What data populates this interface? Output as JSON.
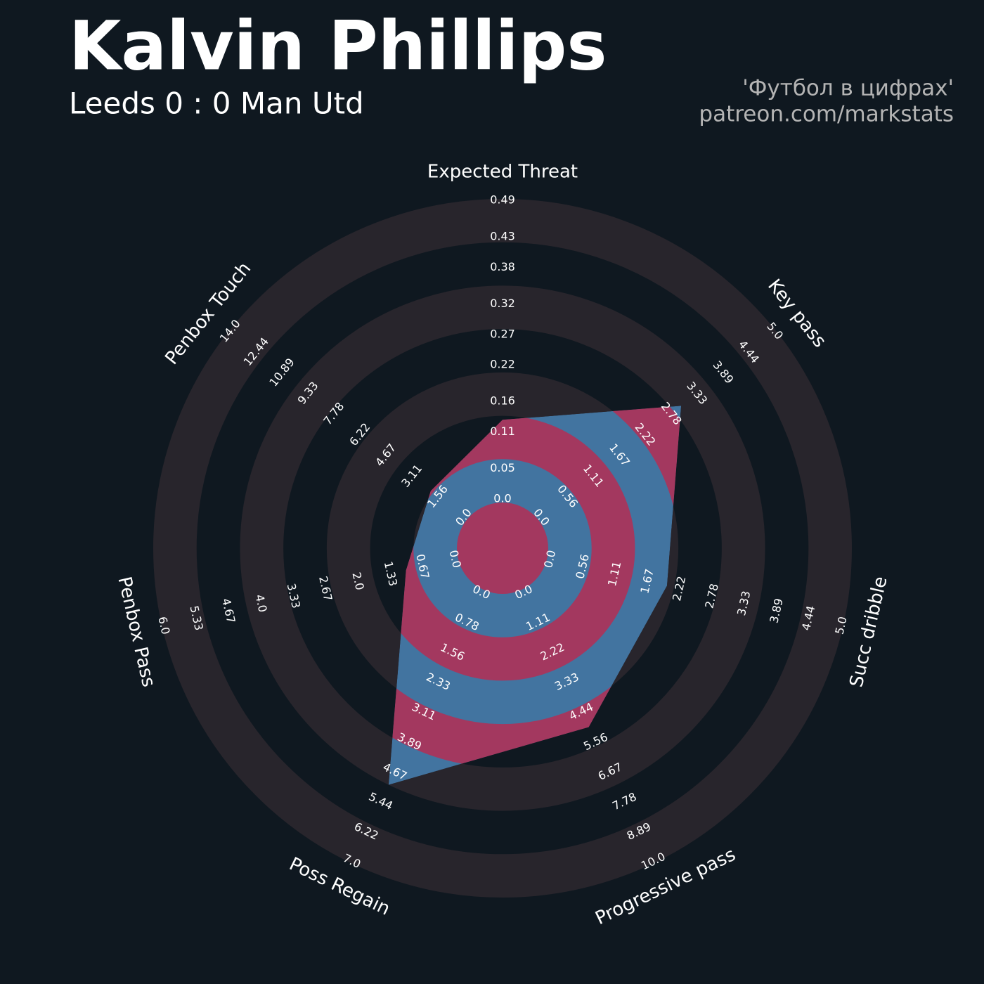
{
  "chart_data": {
    "type": "radar",
    "title": "Kalvin Phillips",
    "subtitle": "Leeds 0 : 0 Man Utd",
    "annotations": [
      "'Футбол в цифрах'",
      "patreon.com/markstats"
    ],
    "categories": [
      "Expected Threat",
      "Key pass",
      "Succ dribble",
      "Progressive pass",
      "Poss Regain",
      "Penbox Pass",
      "Penbox Touch"
    ],
    "axes": [
      {
        "ylim": [
          0,
          0.49
        ],
        "yticks": [
          {
            "value": 0,
            "label": "0.0"
          },
          0.05,
          0.11,
          0.16,
          0.22,
          0.27,
          0.32,
          0.38,
          0.43,
          0.49
        ]
      },
      {
        "ylim": [
          0,
          5
        ],
        "yticks": [
          {
            "value": 0,
            "label": "0.0"
          },
          0.56,
          1.11,
          1.67,
          2.22,
          2.78,
          3.33,
          3.89,
          4.44,
          {
            "value": 5,
            "label": "5.0"
          }
        ]
      },
      {
        "ylim": [
          0,
          5
        ],
        "yticks": [
          {
            "value": 0,
            "label": "0.0"
          },
          0.56,
          1.11,
          1.67,
          2.22,
          2.78,
          3.33,
          3.89,
          4.44,
          {
            "value": 5,
            "label": "5.0"
          }
        ]
      },
      {
        "ylim": [
          0,
          10
        ],
        "yticks": [
          {
            "value": 0,
            "label": "0.0"
          },
          1.11,
          2.22,
          3.33,
          4.44,
          5.56,
          6.67,
          7.78,
          8.89,
          {
            "value": 10,
            "label": "10.0"
          }
        ]
      },
      {
        "ylim": [
          0,
          7
        ],
        "yticks": [
          {
            "value": 0,
            "label": "0.0"
          },
          0.78,
          1.56,
          2.33,
          3.11,
          3.89,
          4.67,
          5.44,
          6.22,
          {
            "value": 7,
            "label": "7.0"
          }
        ]
      },
      {
        "ylim": [
          0,
          6
        ],
        "yticks": [
          {
            "value": 0,
            "label": "0.0"
          },
          0.67,
          1.33,
          {
            "value": 2,
            "label": "2.0"
          },
          2.67,
          3.33,
          {
            "value": 4,
            "label": "4.0"
          },
          4.67,
          5.33,
          {
            "value": 6,
            "label": "6.0"
          }
        ]
      },
      {
        "ylim": [
          0,
          14
        ],
        "yticks": [
          {
            "value": 0,
            "label": "0.0"
          },
          1.56,
          3.11,
          4.67,
          6.22,
          7.78,
          9.33,
          10.89,
          12.44,
          {
            "value": 14,
            "label": "14.0"
          }
        ]
      }
    ],
    "series": [
      {
        "values": [
          0.13,
          3,
          2,
          5,
          5,
          1,
          2
        ],
        "color": "#4274a0",
        "ring_color": "#a3385f"
      }
    ],
    "background_ring_color": "#28252c"
  }
}
